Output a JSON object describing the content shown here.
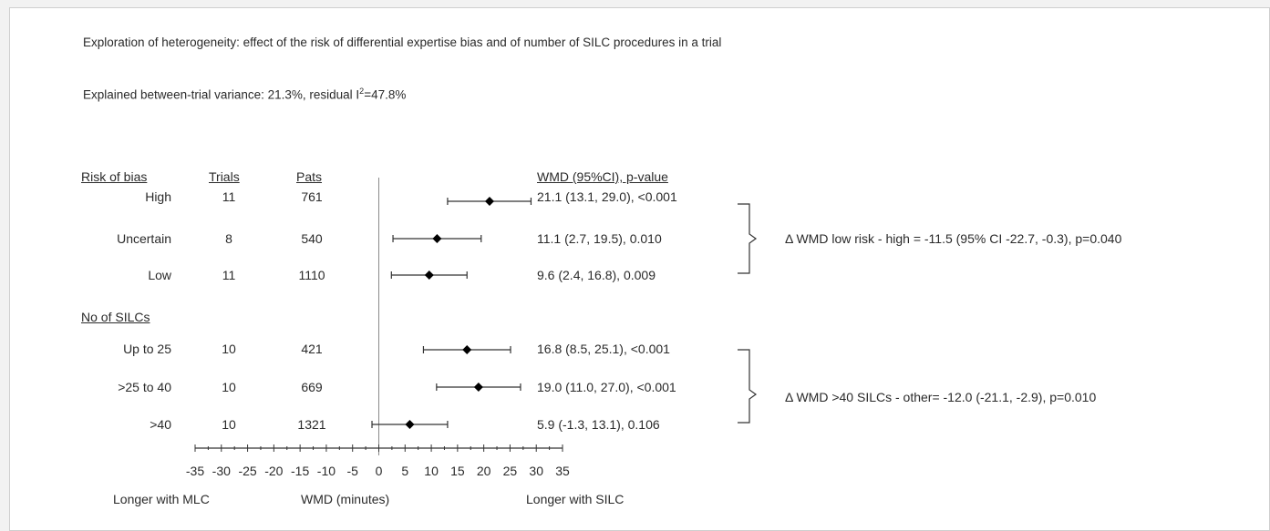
{
  "title": "Exploration of heterogeneity: effect of the risk of differential expertise bias and of number of SILC procedures in a trial",
  "subtitle_main": "Explained between-trial variance: 21.3%, residual I",
  "subtitle_sup": "2",
  "subtitle_tail": "=47.8%",
  "headers": {
    "group1": "Risk of bias",
    "trials": "Trials",
    "pats": "Pats",
    "result": "WMD (95%CI), p-value",
    "group2": "No of SILCs"
  },
  "deltas": [
    "Δ WMD low risk  - high = -11.5 (95% CI -22.7, -0.3), p=0.040",
    "Δ WMD  >40 SILCs - other= -12.0 (-21.1, -2.9), p=0.010"
  ],
  "axis": {
    "xlabel": "WMD (minutes)",
    "left_note": "Longer with MLC",
    "right_note": "Longer with SILC"
  },
  "colors": {
    "line": "#333333",
    "marker": "#000000",
    "background": "#ffffff"
  },
  "chart_data": {
    "type": "forest",
    "xlim": [
      -35,
      35
    ],
    "xticks": [
      -35,
      -30,
      -25,
      -20,
      -15,
      -10,
      -5,
      0,
      5,
      10,
      15,
      20,
      25,
      30,
      35
    ],
    "rows": [
      {
        "label": "High",
        "trials": "11",
        "pats": "761",
        "est": 21.1,
        "lo": 13.1,
        "hi": 29.0,
        "text": "21.1 (13.1, 29.0), <0.001"
      },
      {
        "label": "Uncertain",
        "trials": "8",
        "pats": "540",
        "est": 11.1,
        "lo": 2.7,
        "hi": 19.5,
        "text": "11.1 (2.7, 19.5), 0.010"
      },
      {
        "label": "Low",
        "trials": "11",
        "pats": "1110",
        "est": 9.6,
        "lo": 2.4,
        "hi": 16.8,
        "text": "9.6 (2.4, 16.8), 0.009"
      },
      {
        "label": "Up to 25",
        "trials": "10",
        "pats": "421",
        "est": 16.8,
        "lo": 8.5,
        "hi": 25.1,
        "text": "16.8 (8.5, 25.1), <0.001"
      },
      {
        "label": ">25 to 40",
        "trials": "10",
        "pats": "669",
        "est": 19.0,
        "lo": 11.0,
        "hi": 27.0,
        "text": "19.0 (11.0, 27.0), <0.001"
      },
      {
        "label": ">40",
        "trials": "10",
        "pats": "1321",
        "est": 5.9,
        "lo": -1.3,
        "hi": 13.1,
        "text": "5.9 (-1.3, 13.1), 0.106"
      }
    ]
  }
}
